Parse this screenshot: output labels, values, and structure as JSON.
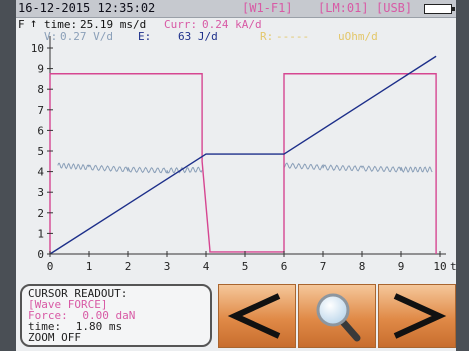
{
  "status_bar": {
    "datetime": "16-12-2015 12:35:02",
    "channel_1": "[W1-F1]",
    "channel_2": "[LM:01]",
    "usb": "[USB]"
  },
  "info": {
    "f_label": "F",
    "time_label": "time:",
    "time_value": "25.19 ms/d",
    "curr_label": "Curr:",
    "curr_value": "0.24 kA/d",
    "v_label": "V:",
    "v_value": "0.27 V/d",
    "e_label": "E:",
    "e_value": "63 J/d",
    "r_label": "R:",
    "r_value": "-----",
    "r_unit": "uOhm/d"
  },
  "axes": {
    "y_ticks": [
      "0",
      "1",
      "2",
      "3",
      "4",
      "5",
      "6",
      "7",
      "8",
      "9",
      "10"
    ],
    "x_ticks": [
      "0",
      "1",
      "2",
      "3",
      "4",
      "5",
      "6",
      "7",
      "8",
      "9",
      "10"
    ],
    "x_axis_label": "t"
  },
  "chart_data": {
    "type": "line",
    "x_range": [
      0,
      10
    ],
    "y_range": [
      0,
      10
    ],
    "series": [
      {
        "color": "#1d2f8a",
        "x": [
          0,
          4,
          6,
          9.9
        ],
        "y": [
          0,
          4.85,
          4.85,
          9.6
        ]
      },
      {
        "color": "#d64691",
        "x": [
          0,
          0,
          3.9,
          3.9,
          4.1,
          4.1,
          6,
          6,
          9.9,
          9.9
        ],
        "y": [
          0,
          8.75,
          8.75,
          4.5,
          0.2,
          0.1,
          0.1,
          8.75,
          8.75,
          0
        ]
      },
      {
        "color": "#8a9fb8",
        "x": [
          0.2,
          1,
          2,
          3,
          3.9,
          6,
          7,
          8,
          9,
          9.8
        ],
        "y": [
          4.3,
          4.2,
          4.1,
          4.05,
          4.1,
          4.3,
          4.2,
          4.15,
          4.1,
          4.1
        ]
      }
    ]
  },
  "cursor_readout": {
    "title": "CURSOR READOUT:",
    "wave": "[Wave FORCE]",
    "force_label": "Force:",
    "force_value": "0.00",
    "force_unit": "daN",
    "time_label": "time:",
    "time_value": "1.80",
    "time_unit": "ms",
    "zoom": "ZOOM OFF"
  },
  "colors": {
    "status_bg": "#c6c9cf",
    "magenta": "#d85aa5",
    "blue": "#1d2f8a",
    "orange": "#e08a47"
  },
  "buttons": {
    "prev_icon": "chevron-left-icon",
    "zoom_icon": "magnifier-icon",
    "next_icon": "chevron-right-icon"
  }
}
